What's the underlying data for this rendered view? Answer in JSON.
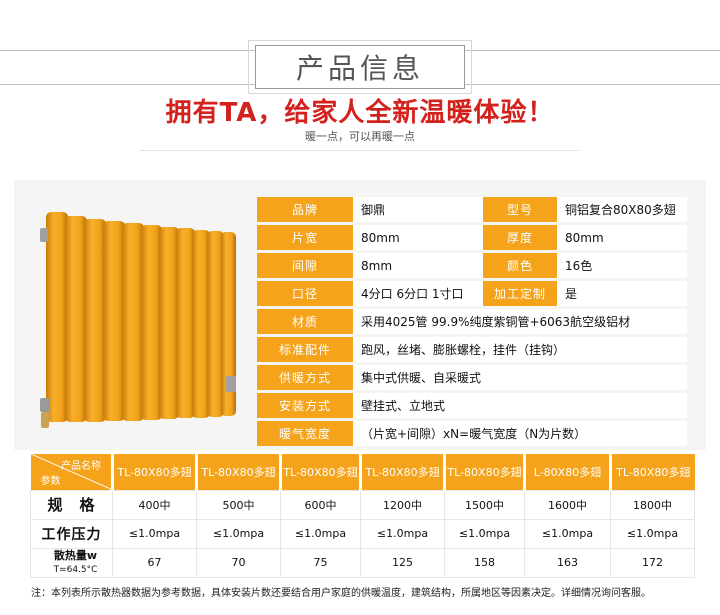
{
  "header": {
    "title": "产品信息",
    "slogan": "拥有TA，给家人全新温暖体验！",
    "subslogan": "暖一点，可以再暖一点"
  },
  "specs": {
    "rows": [
      {
        "label": "品牌",
        "value": "御鼎",
        "label2": "型号",
        "value2": "铜铝复合80X80多翅"
      },
      {
        "label": "片宽",
        "value": "80mm",
        "label2": "厚度",
        "value2": "80mm"
      },
      {
        "label": "间隙",
        "value": "8mm",
        "label2": "颜色",
        "value2": "16色"
      },
      {
        "label": "口径",
        "value": "4分口 6分口 1寸口",
        "label2": "加工定制",
        "value2": "是"
      }
    ],
    "wide_rows": [
      {
        "label": "材质",
        "value": "采用4025管 99.9%纯度紫铜管+6063航空级铝材"
      },
      {
        "label": "标准配件",
        "value": "跑风，丝堵、膨胀螺栓，挂件（挂钩）"
      },
      {
        "label": "供暖方式",
        "value": "集中式供暖、自采暖式"
      },
      {
        "label": "安装方式",
        "value": "壁挂式、立地式"
      },
      {
        "label": "暖气宽度",
        "value": "（片宽+间隙）xN=暖气宽度（N为片数）"
      }
    ]
  },
  "table": {
    "corner_top": "产品名称",
    "corner_bottom": "参数",
    "models": [
      "TL-80X80多翅",
      "TL-80X80多翅",
      "TL-80X80多翅",
      "TL-80X80多翅",
      "TL-80X80多翅",
      "L-80X80多翅",
      "TL-80X80多翅"
    ],
    "spec_label": "规　格",
    "specs": [
      "400中",
      "500中",
      "600中",
      "1200中",
      "1500中",
      "1600中",
      "1800中"
    ],
    "pressure_label": "工作压力",
    "pressures": [
      "≤1.0mpa",
      "≤1.0mpa",
      "≤1.0mpa",
      "≤1.0mpa",
      "≤1.0mpa",
      "≤1.0mpa",
      "≤1.0mpa"
    ],
    "heat_label": "散热量w",
    "heat_sub": "T=64.5°C",
    "heats": [
      "67",
      "70",
      "75",
      "125",
      "158",
      "163",
      "172"
    ]
  },
  "note": "注：本列表所示散热器数据为参考数据，具体安装片数还要结合用户家庭的供暖温度，建筑结构，所属地区等因素决定。详细情况询问客服。",
  "colors": {
    "accent": "#f4a31a",
    "slogan": "#d3211d",
    "radiator": "#f0a21a"
  }
}
